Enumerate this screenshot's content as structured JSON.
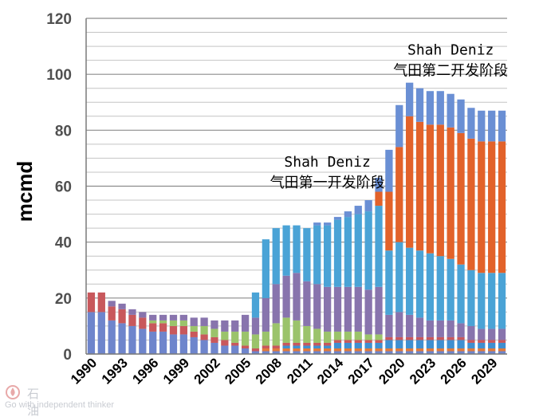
{
  "chart_data": {
    "type": "bar",
    "stacked": true,
    "ylabel": "mcmd",
    "ylim": [
      0,
      120
    ],
    "yticks": [
      0,
      20,
      40,
      60,
      80,
      100,
      120
    ],
    "grid": true,
    "x_start_year": 1990,
    "x_end_year": 2030,
    "xtick_labels": [
      "1990",
      "1993",
      "1996",
      "1999",
      "2002",
      "2005",
      "2008",
      "2011",
      "2014",
      "2017",
      "2020",
      "2023",
      "2026",
      "2029"
    ],
    "annotations": [
      {
        "lines": [
          "Shah Deniz",
          "气田第一开发阶段"
        ],
        "at_year": 2013,
        "at_value": 67
      },
      {
        "lines": [
          "Shah Deniz",
          "气田第二开发阶段"
        ],
        "at_year": 2025,
        "at_value": 107
      }
    ],
    "series": [
      {
        "color": "#6e85cc",
        "values": [
          15,
          15,
          12,
          11,
          10,
          9,
          8,
          8,
          7,
          7,
          6,
          5,
          4,
          3,
          3,
          2,
          1,
          1,
          1,
          1,
          1,
          1,
          1,
          1,
          1,
          1,
          1,
          1,
          1,
          1,
          1,
          1,
          1,
          1,
          1,
          1,
          1,
          1,
          1,
          1,
          1
        ]
      },
      {
        "color": "#e07a3c",
        "values": [
          0,
          0,
          0,
          0,
          0,
          0,
          0,
          0,
          0,
          0,
          0,
          0,
          0,
          0,
          0,
          0,
          0,
          1,
          1,
          1,
          1,
          1,
          1,
          1,
          1,
          1,
          1,
          1,
          1,
          1,
          1,
          1,
          1,
          1,
          1,
          1,
          1,
          1,
          1,
          1,
          1
        ]
      },
      {
        "color": "#3f8fd0",
        "values": [
          0,
          0,
          0,
          0,
          0,
          0,
          0,
          0,
          0,
          0,
          0,
          0,
          0,
          0,
          0,
          0,
          0,
          0,
          0,
          1,
          1,
          1,
          1,
          1,
          2,
          2,
          2,
          2,
          2,
          3,
          3,
          3,
          3,
          3,
          3,
          3,
          3,
          2,
          2,
          2,
          2
        ]
      },
      {
        "color": "#c8585c",
        "values": [
          7,
          7,
          5,
          5,
          4,
          4,
          3,
          3,
          3,
          3,
          2,
          2,
          2,
          2,
          1,
          1,
          1,
          1,
          1,
          1,
          1,
          1,
          1,
          1,
          1,
          1,
          1,
          1,
          1,
          1,
          1,
          1,
          1,
          1,
          1,
          1,
          1,
          1,
          1,
          1,
          1
        ]
      },
      {
        "color": "#9bc36b",
        "values": [
          0,
          0,
          0,
          0,
          0,
          0,
          1,
          1,
          2,
          2,
          2,
          3,
          3,
          3,
          4,
          5,
          5,
          5,
          8,
          9,
          8,
          6,
          5,
          4,
          3,
          3,
          3,
          2,
          2,
          0,
          0,
          0,
          0,
          0,
          0,
          0,
          0,
          0,
          0,
          0,
          0
        ]
      },
      {
        "color": "#8874ad",
        "values": [
          0,
          0,
          2,
          2,
          2,
          2,
          2,
          2,
          2,
          2,
          3,
          3,
          3,
          4,
          4,
          6,
          6,
          12,
          14,
          15,
          17,
          16,
          16,
          16,
          16,
          16,
          16,
          16,
          17,
          8,
          9,
          8,
          7,
          6,
          6,
          6,
          5,
          5,
          4,
          4,
          4
        ]
      },
      {
        "color": "#4aa3d6",
        "values": [
          0,
          0,
          0,
          0,
          0,
          0,
          0,
          0,
          0,
          0,
          0,
          0,
          0,
          0,
          0,
          0,
          9,
          21,
          20,
          18,
          17,
          19,
          21,
          22,
          24,
          25,
          26,
          28,
          29,
          23,
          25,
          24,
          24,
          24,
          23,
          22,
          21,
          20,
          20,
          20,
          20
        ]
      },
      {
        "color": "#e2622a",
        "values": [
          0,
          0,
          0,
          0,
          0,
          0,
          0,
          0,
          0,
          0,
          0,
          0,
          0,
          0,
          0,
          0,
          0,
          0,
          0,
          0,
          0,
          0,
          0,
          0,
          0,
          0,
          0,
          0,
          5,
          21,
          34,
          47,
          46,
          46,
          47,
          47,
          47,
          47,
          47,
          47,
          47
        ]
      },
      {
        "color": "#6a8fd4",
        "values": [
          0,
          0,
          0,
          0,
          0,
          0,
          0,
          0,
          0,
          0,
          0,
          0,
          0,
          0,
          0,
          0,
          0,
          0,
          0,
          0,
          0,
          0,
          1,
          1,
          1,
          2,
          3,
          4,
          5,
          15,
          15,
          12,
          12,
          12,
          12,
          12,
          12,
          11,
          11,
          11,
          11
        ]
      }
    ]
  },
  "watermark": {
    "name": "石油圈",
    "slogan": "Go with independent thinker",
    "logo_color": "#e8a9a9"
  }
}
